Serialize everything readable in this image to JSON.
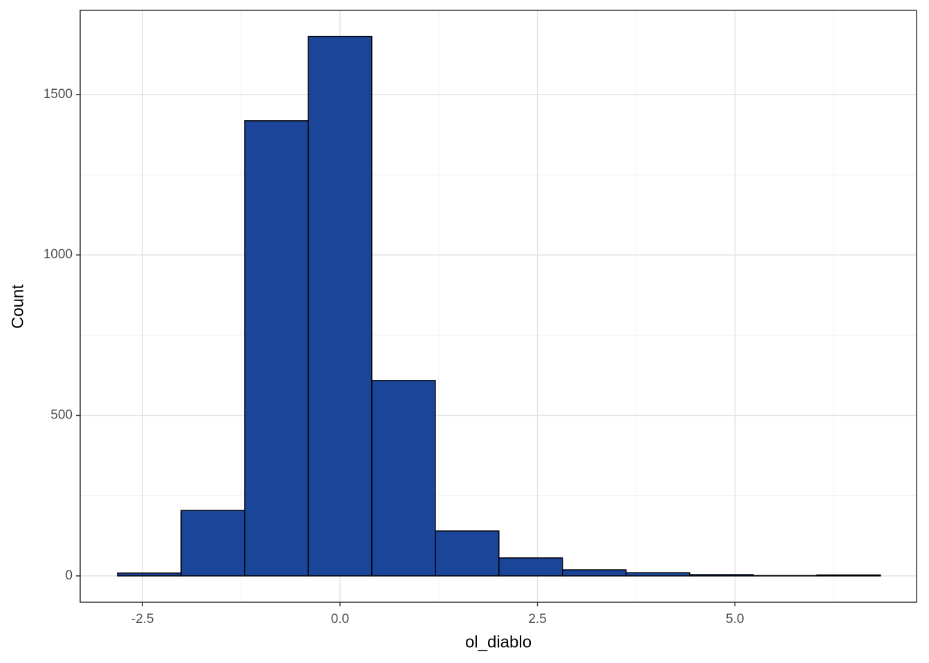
{
  "chart_data": {
    "type": "histogram",
    "x_label": "ol_diablo",
    "y_label": "Count",
    "bins": [
      -2.817,
      -2.012,
      -1.207,
      -0.402,
      0.402,
      1.207,
      2.012,
      2.817,
      3.622,
      4.427,
      5.232,
      6.037,
      6.842
    ],
    "values": [
      9,
      204,
      1418,
      1681,
      609,
      140,
      56,
      19,
      10,
      4,
      1,
      3
    ],
    "color": "#1a4599",
    "edge_color": "#000000",
    "xlim": [
      -3.29,
      7.3
    ],
    "ylim": [
      -82,
      1762
    ],
    "xticks": [
      -2.5,
      {
        "value": 0,
        "label": "0.0"
      },
      2.5,
      {
        "value": 5,
        "label": "5.0"
      }
    ],
    "yticks": [
      0,
      500,
      1000,
      1500
    ],
    "x_minor_ticks": [
      -1.25,
      1.25,
      3.75,
      6.25
    ],
    "y_minor_ticks": [
      250,
      750,
      1250
    ],
    "grid": true
  }
}
